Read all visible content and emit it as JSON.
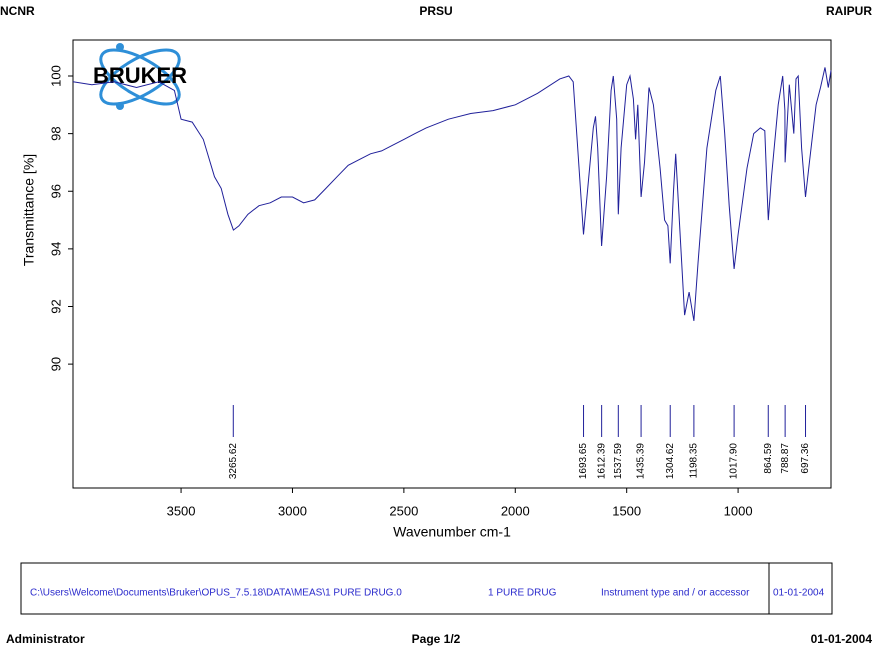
{
  "header": {
    "left": "NCNR",
    "center": "PRSU",
    "right": "RAIPUR"
  },
  "logo": "BRUKER",
  "chart_data": {
    "type": "line",
    "xlabel": "Wavenumber cm-1",
    "ylabel": "Transmittance [%]",
    "color": "#20209a",
    "xlim": [
      3985,
      583
    ],
    "ylim": [
      85.7,
      101.25
    ],
    "xticks": [
      3500,
      3000,
      2500,
      2000,
      1500,
      1000
    ],
    "yticks": [
      90,
      92,
      94,
      96,
      98,
      100
    ],
    "x": [
      3985,
      3900,
      3800,
      3700,
      3600,
      3530,
      3500,
      3450,
      3400,
      3350,
      3320,
      3290,
      3265,
      3240,
      3200,
      3150,
      3100,
      3050,
      3000,
      2950,
      2900,
      2850,
      2800,
      2750,
      2700,
      2650,
      2600,
      2550,
      2500,
      2450,
      2400,
      2300,
      2200,
      2100,
      2000,
      1900,
      1800,
      1760,
      1740,
      1720,
      1693.65,
      1670,
      1650,
      1640,
      1630,
      1612.39,
      1590,
      1570,
      1560,
      1545,
      1537.59,
      1525,
      1500,
      1485,
      1470,
      1460,
      1450,
      1435.39,
      1420,
      1400,
      1380,
      1350,
      1330,
      1315,
      1304.62,
      1290,
      1280,
      1265,
      1240,
      1220,
      1198.35,
      1180,
      1140,
      1100,
      1080,
      1060,
      1040,
      1017.9,
      1000,
      960,
      930,
      900,
      880,
      870,
      864.59,
      850,
      820,
      800,
      790,
      788.87,
      770,
      750,
      740,
      730,
      715,
      697.36,
      680,
      650,
      630,
      610,
      595,
      583
    ],
    "values": [
      99.8,
      99.7,
      99.8,
      99.6,
      99.8,
      99.5,
      98.5,
      98.4,
      97.8,
      96.5,
      96.1,
      95.2,
      94.65,
      94.8,
      95.2,
      95.5,
      95.6,
      95.8,
      95.8,
      95.6,
      95.7,
      96.1,
      96.5,
      96.9,
      97.1,
      97.3,
      97.4,
      97.6,
      97.8,
      98.0,
      98.2,
      98.5,
      98.7,
      98.8,
      99.0,
      99.4,
      99.9,
      100.0,
      99.8,
      97.5,
      94.5,
      96.5,
      98.2,
      98.6,
      97.5,
      94.1,
      96.5,
      99.5,
      100.0,
      98.5,
      95.2,
      97.5,
      99.7,
      100.0,
      99.2,
      97.8,
      99.0,
      95.8,
      97.0,
      99.6,
      99.0,
      96.8,
      95.0,
      94.8,
      93.5,
      96.0,
      97.3,
      95.2,
      91.7,
      92.5,
      91.5,
      93.5,
      97.5,
      99.5,
      100.0,
      98.0,
      95.5,
      93.3,
      94.5,
      96.8,
      98.0,
      98.2,
      98.1,
      96.0,
      95.0,
      96.5,
      99.0,
      100.0,
      98.8,
      97.0,
      99.7,
      98.0,
      99.9,
      100.0,
      97.5,
      95.8,
      97.0,
      99.0,
      99.6,
      100.3,
      99.6,
      100.2
    ],
    "peaks": [
      3265.62,
      1693.65,
      1612.39,
      1537.59,
      1435.39,
      1304.62,
      1198.35,
      1017.9,
      864.59,
      788.87,
      697.36
    ],
    "peak_labels": [
      "3265.62",
      "1693.65",
      "1612.39",
      "1537.59",
      "1435.39",
      "1304.62",
      "1198.35",
      "1017.90",
      "864.59",
      "788.87",
      "697.36"
    ]
  },
  "footer_box": {
    "path": "C:\\Users\\Welcome\\Documents\\Bruker\\OPUS_7.5.18\\DATA\\MEAS\\1 PURE DRUG.0",
    "sample": "1 PURE DRUG",
    "instrument": "Instrument type and / or accessor",
    "date": "01-01-2004"
  },
  "footer": {
    "left": "Administrator",
    "center": "Page 1/2",
    "right": "01-01-2004"
  }
}
